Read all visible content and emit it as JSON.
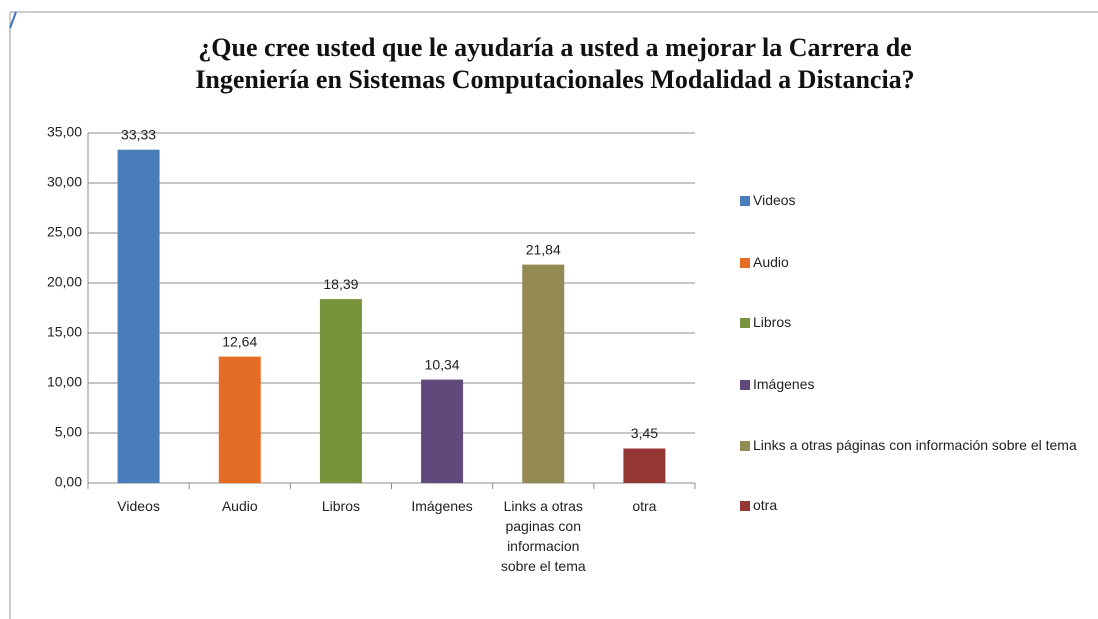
{
  "chart_data": {
    "type": "bar",
    "title_lines": [
      "¿Que cree usted que le ayudaría a usted a mejorar la Carrera de",
      "Ingeniería en Sistemas Computacionales Modalidad a Distancia?"
    ],
    "categories": [
      "Videos",
      "Audio",
      "Libros",
      "Imágenes",
      "Links a otras paginas con informacion sobre el tema",
      "otra"
    ],
    "values": [
      33.33,
      12.64,
      18.39,
      10.34,
      21.84,
      3.45
    ],
    "value_labels": [
      "33,33",
      "12,64",
      "18,39",
      "10,34",
      "21,84",
      "3,45"
    ],
    "colors": [
      "#4a7ebb",
      "#e46c24",
      "#77933c",
      "#604a7b",
      "#948a54",
      "#953735"
    ],
    "legend": [
      "Videos",
      "Audio",
      "Libros",
      "Imágenes",
      "Links a otras páginas con información sobre el tema",
      "otra"
    ],
    "ylim": [
      0,
      35
    ],
    "yticks": [
      {
        "value": 0,
        "label": "0,00"
      },
      {
        "value": 5,
        "label": "5,00"
      },
      {
        "value": 10,
        "label": "10,00"
      },
      {
        "value": 15,
        "label": "15,00"
      },
      {
        "value": 20,
        "label": "20,00"
      },
      {
        "value": 25,
        "label": "25,00"
      },
      {
        "value": 30,
        "label": "30,00"
      },
      {
        "value": 35,
        "label": "35,00"
      }
    ],
    "grid": true
  }
}
